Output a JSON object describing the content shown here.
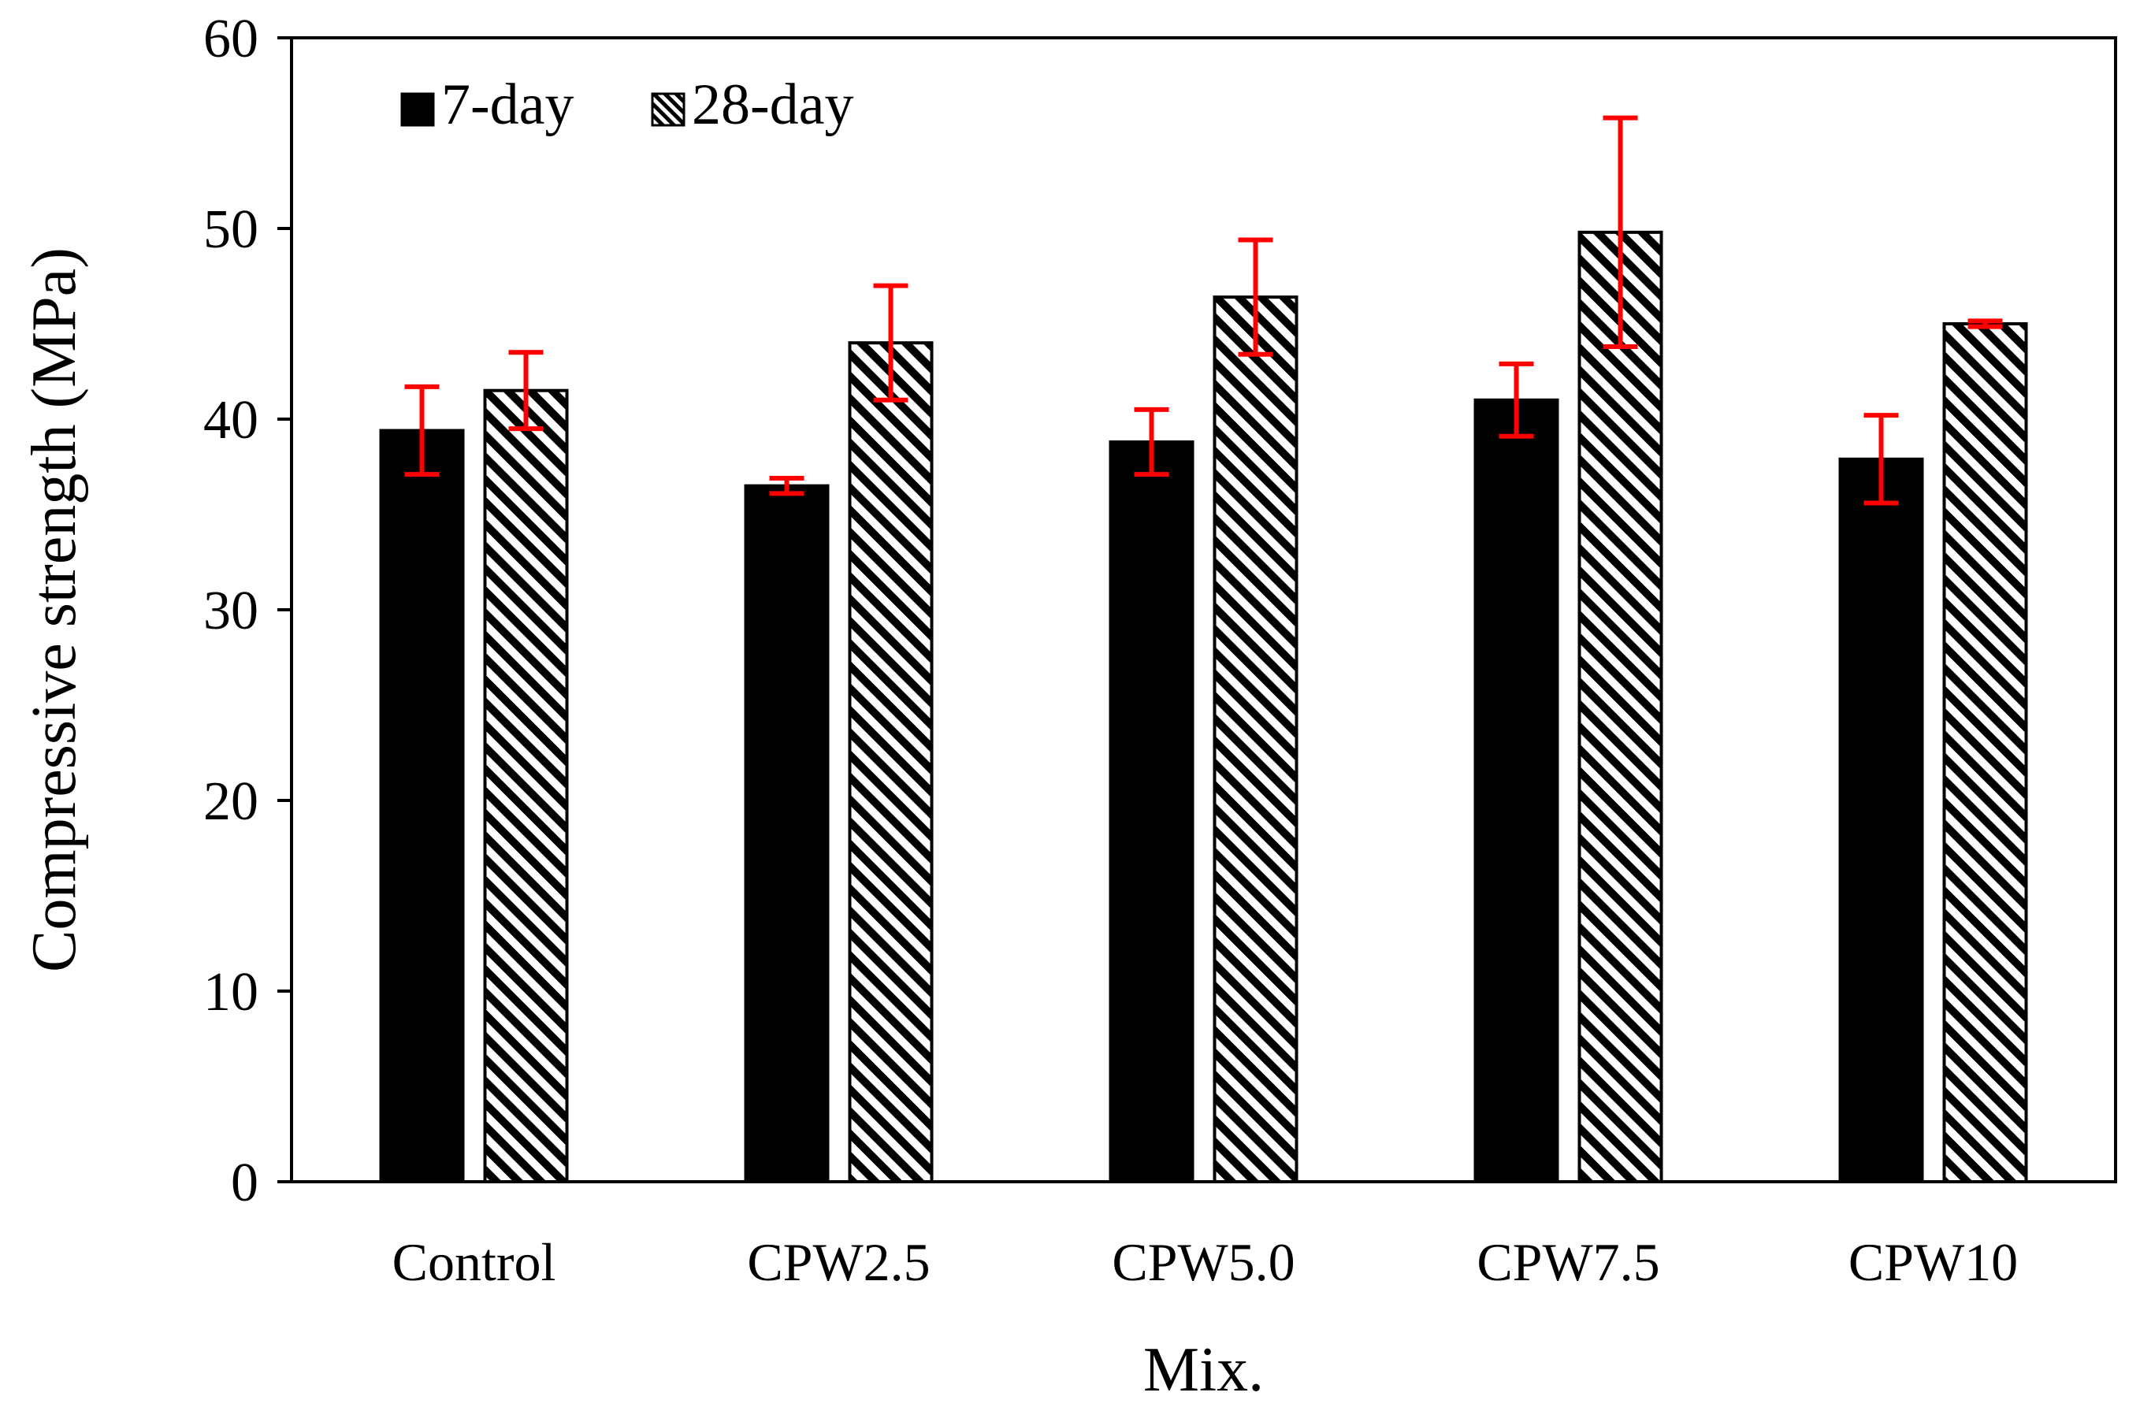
{
  "chart_data": {
    "type": "bar",
    "title": "",
    "xlabel": "Mix.",
    "ylabel": "Compressive strength (MPa)",
    "ylim": [
      0,
      60
    ],
    "yticks": [
      0,
      10,
      20,
      30,
      40,
      50,
      60
    ],
    "grid": false,
    "legend_position": "top-left",
    "categories": [
      "Control",
      "CPW2.5",
      "CPW5.0",
      "CPW7.5",
      "CPW10"
    ],
    "series": [
      {
        "name": "7-day",
        "fill": "solid",
        "color": "#000000",
        "values": [
          39.4,
          36.5,
          38.8,
          41.0,
          37.9
        ],
        "error": [
          2.3,
          0.4,
          1.7,
          1.9,
          2.3
        ]
      },
      {
        "name": "28-day",
        "fill": "hatched",
        "color": "#000000",
        "values": [
          41.5,
          44.0,
          46.4,
          49.8,
          45.0
        ],
        "error": [
          2.0,
          3.0,
          3.0,
          6.0,
          0.15
        ]
      }
    ],
    "error_bar_color": "#ff0000"
  }
}
